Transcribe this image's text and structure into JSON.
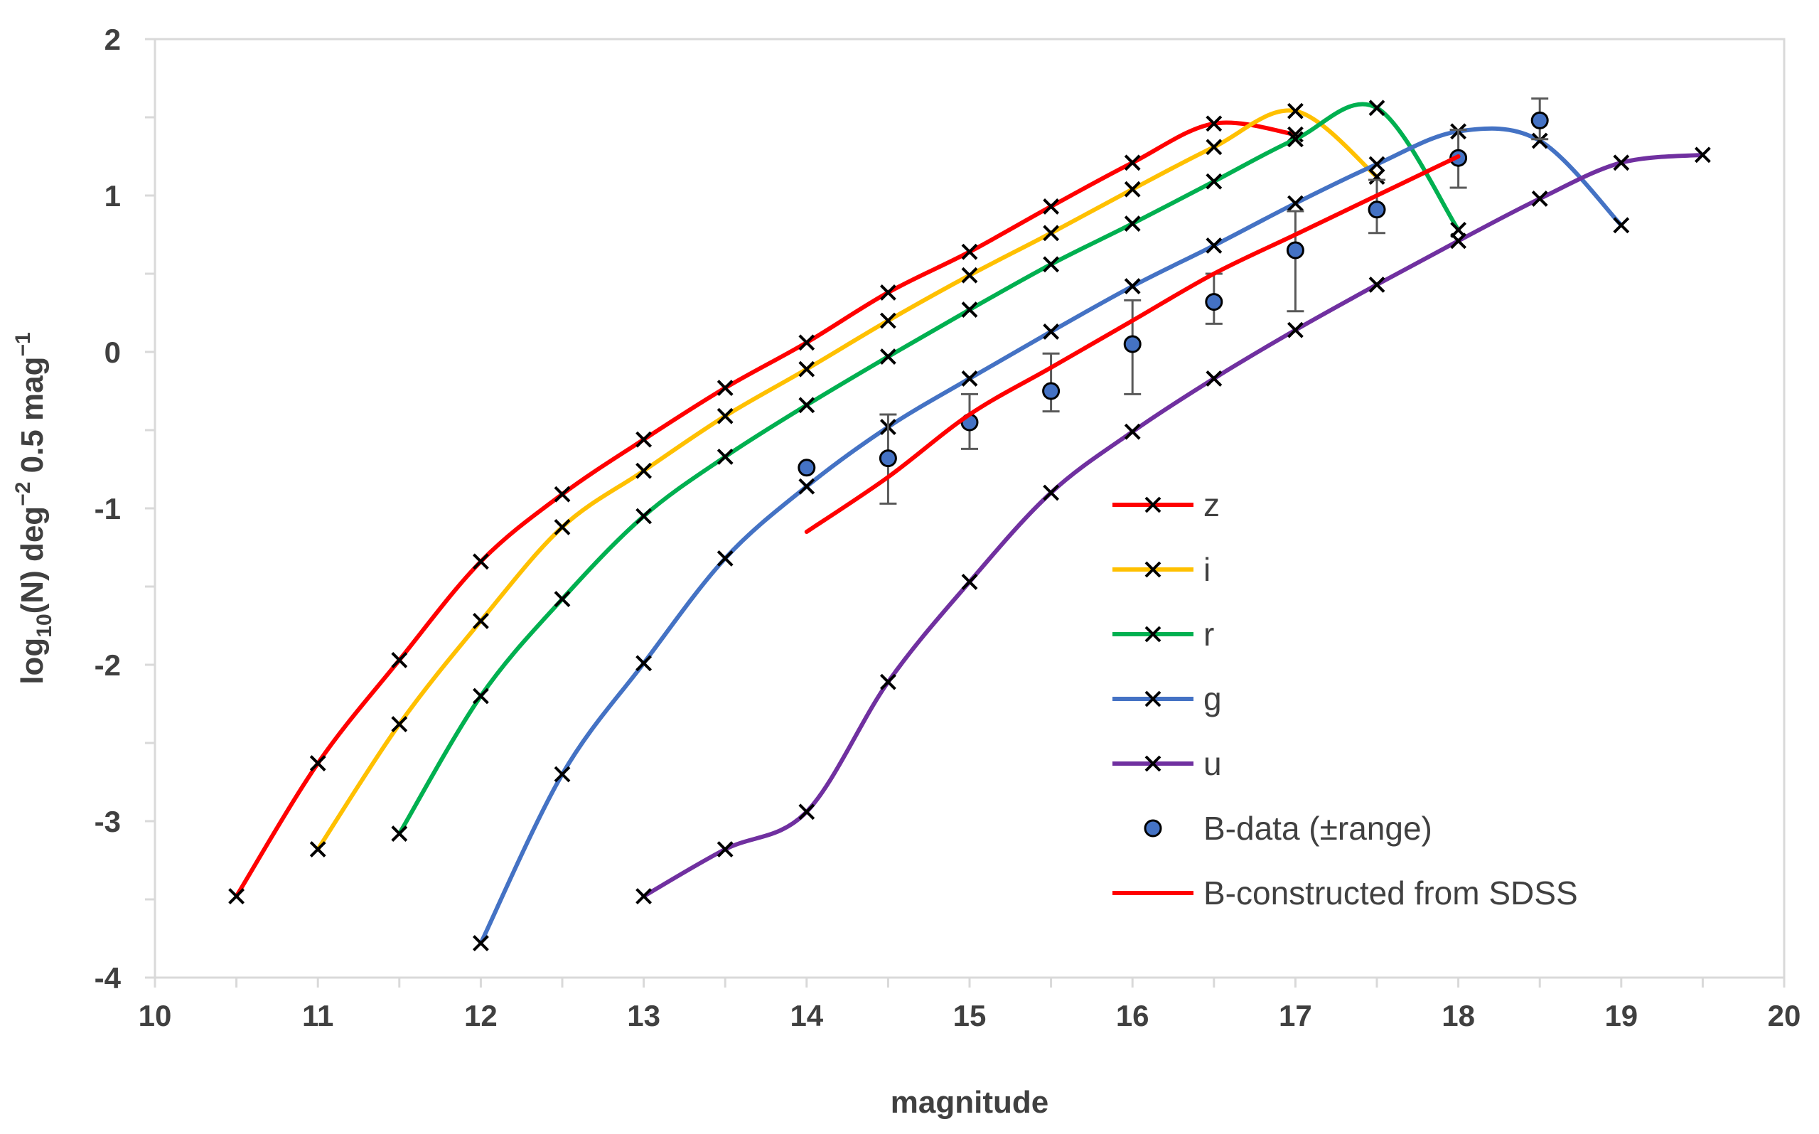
{
  "chart_data": {
    "type": "line",
    "title": "",
    "xlabel": "magnitude",
    "ylabel": "log10(N) deg−2 0.5 mag−1",
    "ylabel_parts": {
      "a": "log",
      "b": "10",
      "c": "(N) deg",
      "d": "−2",
      "e": " 0.5 mag",
      "f": "−1"
    },
    "xlim": [
      10,
      20
    ],
    "ylim": [
      -4,
      2
    ],
    "x_ticks": [
      10,
      11,
      12,
      13,
      14,
      15,
      16,
      17,
      18,
      19,
      20
    ],
    "y_ticks": [
      -4,
      -3,
      -2,
      -1,
      0,
      1,
      2
    ],
    "grid": false,
    "legend_position": "lower-right",
    "series": [
      {
        "name": "z",
        "color": "#ff0000",
        "marker": "x",
        "x": [
          10.5,
          11,
          11.5,
          12,
          12.5,
          13,
          13.5,
          14,
          14.5,
          15,
          15.5,
          16,
          16.5,
          17
        ],
        "y": [
          -3.48,
          -2.63,
          -1.97,
          -1.34,
          -0.91,
          -0.56,
          -0.23,
          0.06,
          0.38,
          0.64,
          0.93,
          1.21,
          1.46,
          1.39
        ]
      },
      {
        "name": "i",
        "color": "#ffc000",
        "marker": "x",
        "x": [
          11,
          11.5,
          12,
          12.5,
          13,
          13.5,
          14,
          14.5,
          15,
          15.5,
          16,
          16.5,
          17,
          17.5
        ],
        "y": [
          -3.18,
          -2.38,
          -1.72,
          -1.12,
          -0.76,
          -0.41,
          -0.11,
          0.2,
          0.49,
          0.76,
          1.04,
          1.31,
          1.54,
          1.12
        ]
      },
      {
        "name": "r",
        "color": "#00b050",
        "marker": "x",
        "x": [
          11.5,
          12,
          12.5,
          13,
          13.5,
          14,
          14.5,
          15,
          15.5,
          16,
          16.5,
          17,
          17.5,
          18
        ],
        "y": [
          -3.08,
          -2.2,
          -1.58,
          -1.05,
          -0.67,
          -0.34,
          -0.03,
          0.27,
          0.56,
          0.82,
          1.09,
          1.36,
          1.56,
          0.78
        ]
      },
      {
        "name": "g",
        "color": "#4472c4",
        "marker": "x",
        "x": [
          12,
          12.5,
          13,
          13.5,
          14,
          14.5,
          15,
          15.5,
          16,
          16.5,
          17,
          17.5,
          18,
          18.5,
          19
        ],
        "y": [
          -3.78,
          -2.7,
          -1.99,
          -1.32,
          -0.86,
          -0.48,
          -0.17,
          0.13,
          0.42,
          0.68,
          0.95,
          1.2,
          1.41,
          1.35,
          0.81
        ]
      },
      {
        "name": "u",
        "color": "#7030a0",
        "marker": "x",
        "x": [
          13,
          13.5,
          14,
          14.5,
          15,
          15.5,
          16,
          16.5,
          17,
          17.5,
          18,
          18.5,
          19,
          19.5
        ],
        "y": [
          -3.48,
          -3.18,
          -2.94,
          -2.11,
          -1.47,
          -0.9,
          -0.51,
          -0.17,
          0.14,
          0.43,
          0.71,
          0.98,
          1.21,
          1.26
        ]
      },
      {
        "name": "B-data (±range)",
        "color": "#4472c4",
        "marker": "circle",
        "errorbars": true,
        "x": [
          14,
          14.5,
          15,
          15.5,
          16,
          16.5,
          17,
          17.5,
          18,
          18.5
        ],
        "y": [
          -0.74,
          -0.68,
          -0.45,
          -0.25,
          0.05,
          0.32,
          0.65,
          0.91,
          1.24,
          1.48
        ],
        "yerr_low": [
          -0.74,
          -0.97,
          -0.62,
          -0.38,
          -0.27,
          0.18,
          0.26,
          0.76,
          1.05,
          1.36
        ],
        "yerr_high": [
          -0.74,
          -0.4,
          -0.27,
          -0.01,
          0.33,
          0.5,
          0.9,
          1.1,
          1.42,
          1.62
        ]
      },
      {
        "name": "B-constructed from SDSS",
        "color": "#ff0000",
        "marker": "none",
        "x": [
          14,
          14.5,
          15,
          15.5,
          16,
          16.5,
          17,
          17.5,
          18
        ],
        "y": [
          -1.15,
          -0.8,
          -0.4,
          -0.1,
          0.2,
          0.5,
          0.75,
          1.0,
          1.25
        ]
      }
    ]
  }
}
